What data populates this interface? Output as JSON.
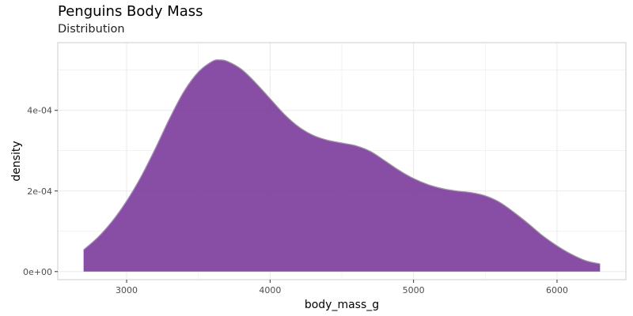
{
  "title": "Penguins Body Mass",
  "subtitle": "Distribution",
  "chart_data": {
    "type": "area",
    "title": "Penguins Body Mass",
    "subtitle": "Distribution",
    "xlabel": "body_mass_g",
    "ylabel": "density",
    "xlim": [
      2520,
      6480
    ],
    "ylim": [
      -2e-05,
      0.000568
    ],
    "x_ticks": [
      3000,
      4000,
      5000,
      6000
    ],
    "x_tick_labels": [
      "3000",
      "4000",
      "5000",
      "6000"
    ],
    "y_ticks": [
      0,
      0.0002,
      0.0004
    ],
    "y_tick_labels": [
      "0e+00",
      "2e-04",
      "4e-04"
    ],
    "grid": true,
    "legend": "none",
    "fill_color": "#7b3a9a",
    "outline_color": "#999999",
    "panel_border_color": "#cccccc",
    "grid_color": "#ebebeb",
    "series": [
      {
        "x": [
          2700,
          2800,
          2900,
          3000,
          3100,
          3200,
          3300,
          3400,
          3500,
          3600,
          3650,
          3700,
          3800,
          3900,
          4000,
          4100,
          4200,
          4300,
          4400,
          4500,
          4600,
          4700,
          4800,
          4900,
          5000,
          5100,
          5200,
          5300,
          5400,
          5500,
          5600,
          5700,
          5800,
          5900,
          6000,
          6100,
          6200,
          6300
        ],
        "y": [
          5.4e-05,
          8.5e-05,
          0.000125,
          0.000175,
          0.000235,
          0.000305,
          0.00038,
          0.000447,
          0.000495,
          0.000522,
          0.000525,
          0.000522,
          0.000502,
          0.000468,
          0.000429,
          0.00039,
          0.000359,
          0.000338,
          0.000326,
          0.000319,
          0.000312,
          0.000298,
          0.000275,
          0.000251,
          0.000231,
          0.000216,
          0.000206,
          0.0002,
          0.000196,
          0.000188,
          0.000172,
          0.000147,
          0.000119,
          8.9e-05,
          6.4e-05,
          4.3e-05,
          2.7e-05,
          1.9e-05
        ]
      }
    ]
  }
}
